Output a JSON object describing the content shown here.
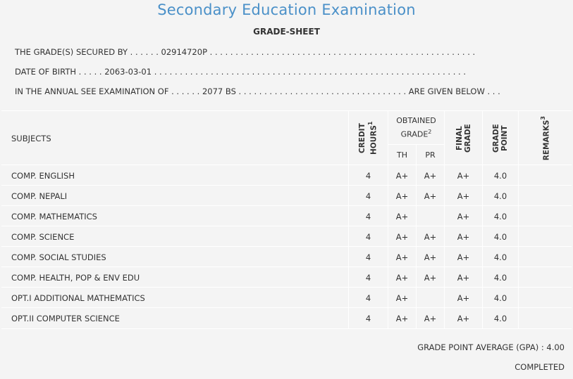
{
  "header": {
    "title": "Secondary Education Examination",
    "sheet_title": "GRADE-SHEET"
  },
  "info": {
    "line1": "THE GRADE(S) SECURED BY . . . . . . 02914720P . . . . . . . . . . . . . . . . . . . . . . . . . . . . . . . . . . . . . . . . . . . . . . . . . . . .",
    "line2": "DATE OF BIRTH . . . . . 2063-03-01 . . . . . . . . . . . . . . . . . . . . . . . . . . . . . . . . . . . . . . . . . . . . . . . . . . . . . . . . . . . . .",
    "line3": "IN THE ANNUAL SEE EXAMINATION OF . . . . . . 2077 BS . . . . . . . . . . . . . . . . . . . . . . . . . . . . . . . . . ARE GIVEN BELOW . . ."
  },
  "columns": {
    "subjects": "SUBJECTS",
    "credit_hours": "CREDIT HOURS",
    "credit_sup": "1",
    "obtained_grade": "OBTAINED GRADE",
    "obtained_sup": "2",
    "th": "TH",
    "pr": "PR",
    "final_grade": "FINAL GRADE",
    "grade_point": "GRADE POINT",
    "remarks": "REMARKS",
    "remarks_sup": "3"
  },
  "rows": [
    {
      "subject": "COMP. ENGLISH",
      "credit": "4",
      "th": "A+",
      "pr": "A+",
      "final": "A+",
      "gp": "4.0",
      "remarks": ""
    },
    {
      "subject": "COMP. NEPALI",
      "credit": "4",
      "th": "A+",
      "pr": "A+",
      "final": "A+",
      "gp": "4.0",
      "remarks": ""
    },
    {
      "subject": "COMP. MATHEMATICS",
      "credit": "4",
      "th": "A+",
      "pr": "",
      "final": "A+",
      "gp": "4.0",
      "remarks": ""
    },
    {
      "subject": "COMP. SCIENCE",
      "credit": "4",
      "th": "A+",
      "pr": "A+",
      "final": "A+",
      "gp": "4.0",
      "remarks": ""
    },
    {
      "subject": "COMP. SOCIAL STUDIES",
      "credit": "4",
      "th": "A+",
      "pr": "A+",
      "final": "A+",
      "gp": "4.0",
      "remarks": ""
    },
    {
      "subject": "COMP. HEALTH, POP & ENV EDU",
      "credit": "4",
      "th": "A+",
      "pr": "A+",
      "final": "A+",
      "gp": "4.0",
      "remarks": ""
    },
    {
      "subject": "OPT.I ADDITIONAL MATHEMATICS",
      "credit": "4",
      "th": "A+",
      "pr": "",
      "final": "A+",
      "gp": "4.0",
      "remarks": ""
    },
    {
      "subject": "OPT.II COMPUTER SCIENCE",
      "credit": "4",
      "th": "A+",
      "pr": "A+",
      "final": "A+",
      "gp": "4.0",
      "remarks": ""
    }
  ],
  "footer": {
    "gpa": "GRADE POINT AVERAGE (GPA) : 4.00",
    "status": "COMPLETED"
  }
}
